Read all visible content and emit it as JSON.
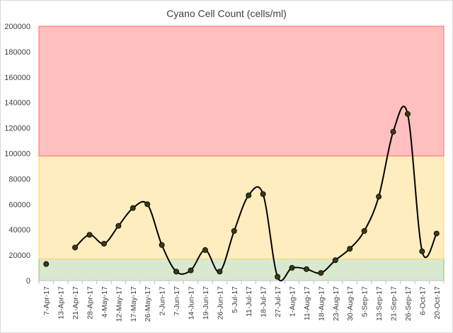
{
  "chart_data": {
    "type": "line",
    "title": "Cyano Cell Count (cells/ml)",
    "xlabel": "",
    "ylabel": "",
    "ylim": [
      0,
      200000
    ],
    "yticks": [
      0,
      20000,
      40000,
      60000,
      80000,
      100000,
      120000,
      140000,
      160000,
      180000,
      200000
    ],
    "ytick_labels": [
      "0",
      "20000",
      "40000",
      "60000",
      "80000",
      "100000",
      "120000",
      "140000",
      "160000",
      "180000",
      "200000"
    ],
    "categories": [
      "7-Apr-17",
      "13-Apr-17",
      "21-Apr-17",
      "28-Apr-17",
      "4-May-17",
      "12-May-17",
      "17-May-17",
      "26-May-17",
      "2-Jun-17",
      "7-Jun-17",
      "14-Jun-17",
      "19-Jun-17",
      "26-Jun-17",
      "5-Jul-17",
      "11-Jul-17",
      "18-Jul-17",
      "27-Jul-17",
      "1-Aug-17",
      "11-Aug-17",
      "18-Aug-17",
      "23-Aug-17",
      "30-Aug-17",
      "5-Sep-17",
      "13-Sep-17",
      "21-Sep-17",
      "26-Sep-17",
      "6-Oct-17",
      "20-Oct-17"
    ],
    "series": [
      {
        "values": [
          13000,
          null,
          26000,
          36000,
          29000,
          43000,
          57000,
          60000,
          28000,
          7000,
          8000,
          24000,
          7000,
          39000,
          67000,
          68000,
          3000,
          10000,
          9000,
          6000,
          16000,
          25000,
          39000,
          66000,
          117000,
          131000,
          23000,
          37000
        ],
        "color": "#000000",
        "marker_color": "#3a3a12"
      }
    ],
    "bands": [
      {
        "from": 0,
        "to": 17000,
        "color": "#d9e9cf",
        "border": "#8fbf62"
      },
      {
        "from": 17000,
        "to": 98000,
        "color": "#ffecbf",
        "border": "#ffd65a"
      },
      {
        "from": 98000,
        "to": 200000,
        "color": "#ffbfbf",
        "border": "#ff6b6b"
      }
    ],
    "grid": false,
    "legend": "none"
  }
}
